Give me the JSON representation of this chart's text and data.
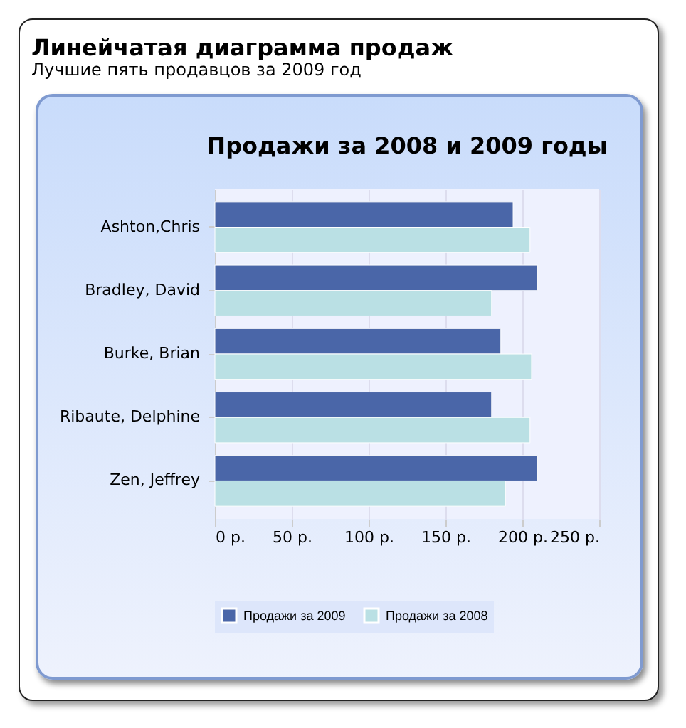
{
  "chart_data": {
    "type": "bar",
    "orientation": "horizontal",
    "title": "Линейчатая диаграмма продаж",
    "subtitle": "Лучшие пять продавцов за 2009 год",
    "annotations": [
      "Продажи за 2008 и 2009 годы"
    ],
    "categories": [
      "Ashton,Chris",
      "Bradley, David",
      "Burke, Brian",
      "Ribaute, Delphine",
      "Zen, Jeffrey"
    ],
    "series": [
      {
        "name": "Продажи за 2009",
        "color": "#4a66a8",
        "values": [
          194,
          210,
          186,
          180,
          210
        ]
      },
      {
        "name": "Продажи за 2008",
        "color": "#bae0e4",
        "values": [
          205,
          180,
          206,
          205,
          189
        ]
      }
    ],
    "xlim": [
      0,
      250
    ],
    "xticks": [
      {
        "value": 0,
        "label": "0 р."
      },
      {
        "value": 50,
        "label": "50 р."
      },
      {
        "value": 100,
        "label": "100 р."
      },
      {
        "value": 150,
        "label": "150 р."
      },
      {
        "value": 200,
        "label": "200 р."
      },
      {
        "value": 250,
        "label": "250 р."
      }
    ],
    "grid": "x",
    "legend": "bottom"
  }
}
